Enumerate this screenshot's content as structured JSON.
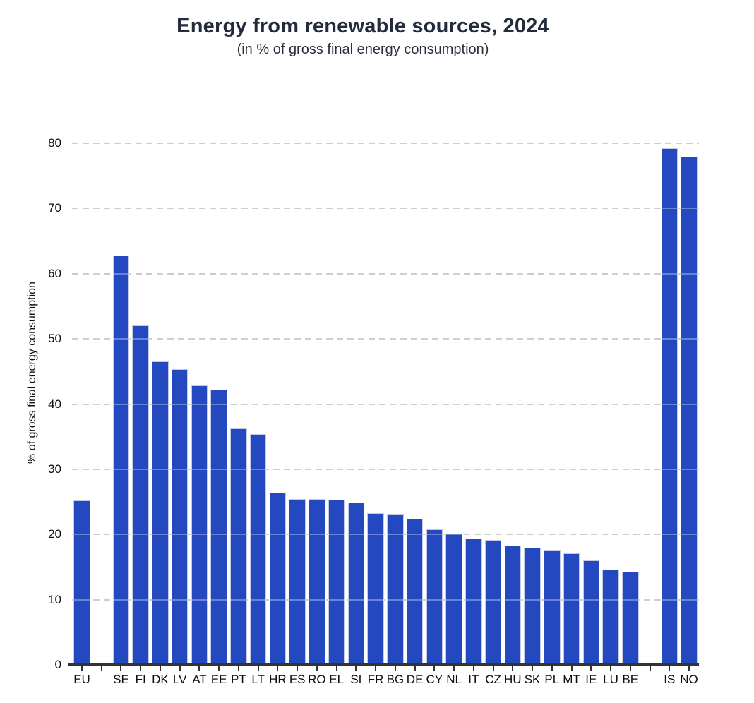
{
  "chart_data": {
    "type": "bar",
    "title": "Energy from renewable sources, 2024",
    "subtitle": "(in % of gross final energy consumption)",
    "xlabel": "",
    "ylabel": "% of gross final energy consumption",
    "ylim": [
      0,
      80
    ],
    "yticks": [
      0,
      10,
      20,
      30,
      40,
      50,
      60,
      70,
      80
    ],
    "grid": "horizontal-dashed",
    "legend": "none",
    "bar_color": "#2448c0",
    "axis_color": "#333333",
    "gridline_color": "#b7b7b7",
    "categories": [
      "EU",
      "SE",
      "FI",
      "DK",
      "LV",
      "AT",
      "EE",
      "PT",
      "LT",
      "HR",
      "ES",
      "RO",
      "EL",
      "SI",
      "FR",
      "BG",
      "DE",
      "CY",
      "NL",
      "IT",
      "CZ",
      "HU",
      "SK",
      "PL",
      "MT",
      "IE",
      "LU",
      "BE",
      "IS",
      "NO"
    ],
    "values": [
      25.2,
      62.8,
      52.1,
      46.5,
      45.4,
      42.9,
      42.2,
      36.3,
      35.4,
      26.4,
      25.4,
      25.4,
      25.3,
      24.9,
      23.3,
      23.2,
      22.4,
      20.8,
      20.1,
      19.4,
      19.2,
      18.3,
      18.0,
      17.6,
      17.1,
      16.0,
      14.6,
      14.3,
      79.2,
      77.9
    ],
    "groups": [
      {
        "name": "eu-aggregate",
        "categories": [
          "EU"
        ],
        "values": [
          25.2
        ]
      },
      {
        "name": "eu-members",
        "categories": [
          "SE",
          "FI",
          "DK",
          "LV",
          "AT",
          "EE",
          "PT",
          "LT",
          "HR",
          "ES",
          "RO",
          "EL",
          "SI",
          "FR",
          "BG",
          "DE",
          "CY",
          "NL",
          "IT",
          "CZ",
          "HU",
          "SK",
          "PL",
          "MT",
          "IE",
          "LU",
          "BE"
        ],
        "values": [
          62.8,
          52.1,
          46.5,
          45.4,
          42.9,
          42.2,
          36.3,
          35.4,
          26.4,
          25.4,
          25.4,
          25.3,
          24.9,
          23.3,
          23.2,
          22.4,
          20.8,
          20.1,
          19.4,
          19.2,
          18.3,
          18.0,
          17.6,
          17.1,
          16.0,
          14.6,
          14.3
        ]
      },
      {
        "name": "efta",
        "categories": [
          "IS",
          "NO"
        ],
        "values": [
          79.2,
          77.9
        ]
      }
    ]
  }
}
